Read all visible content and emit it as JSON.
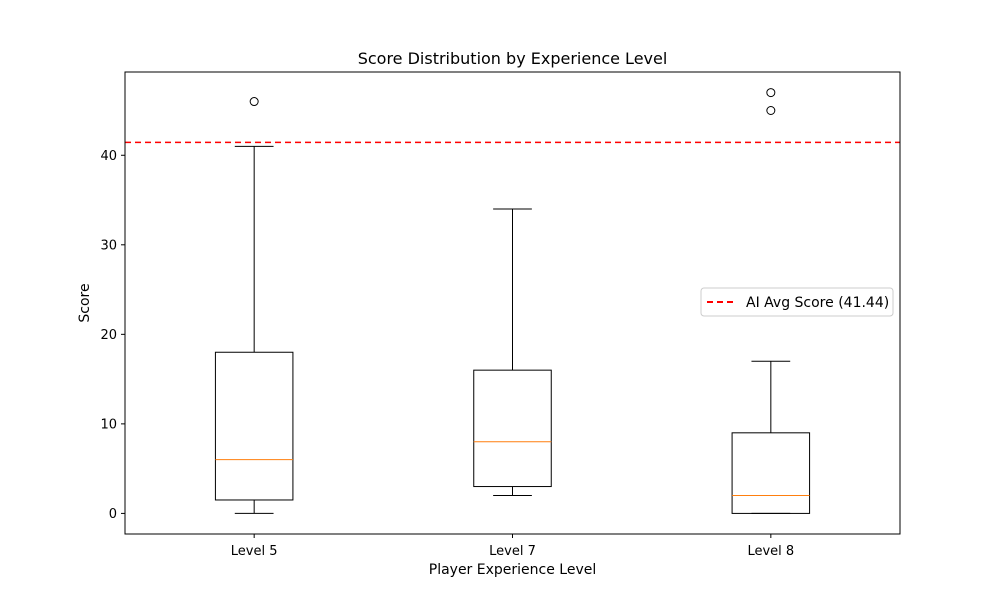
{
  "chart_data": {
    "type": "box",
    "title": "Score Distribution by Experience Level",
    "xlabel": "Player Experience Level",
    "ylabel": "Score",
    "ylim": [
      -2.3,
      49.3
    ],
    "yticks": [
      0,
      10,
      20,
      30,
      40
    ],
    "grid": false,
    "legend": {
      "placement": "center-right",
      "entries": [
        "AI Avg Score (41.44)"
      ]
    },
    "categories": [
      "Level 5",
      "Level 7",
      "Level 8"
    ],
    "boxes": [
      {
        "category": "Level 5",
        "whisker_low": 0,
        "q1": 1.5,
        "median": 6,
        "q3": 18,
        "whisker_high": 41,
        "outliers": [
          46
        ]
      },
      {
        "category": "Level 7",
        "whisker_low": 2,
        "q1": 3,
        "median": 8,
        "q3": 16,
        "whisker_high": 34,
        "outliers": []
      },
      {
        "category": "Level 8",
        "whisker_low": 0,
        "q1": 0,
        "median": 2,
        "q3": 9,
        "whisker_high": 17,
        "outliers": [
          45,
          47
        ]
      }
    ],
    "reference_line": {
      "value": 41.44,
      "label": "AI Avg Score (41.44)",
      "color": "#ff0000",
      "style": "dashed"
    },
    "colors": {
      "box": "#000000",
      "median": "#ff7f0e",
      "reference": "#ff0000"
    }
  }
}
